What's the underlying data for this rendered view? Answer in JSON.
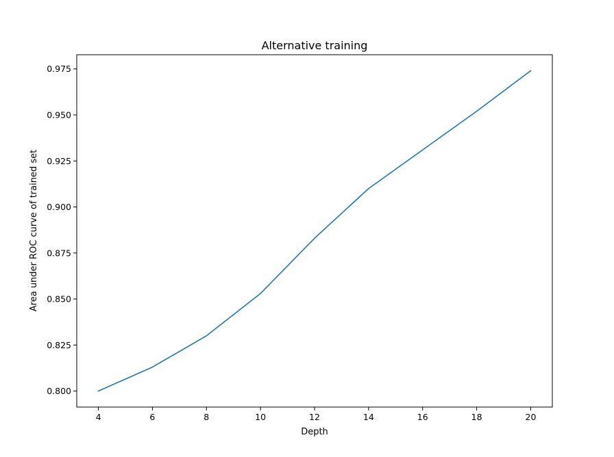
{
  "chart_data": {
    "type": "line",
    "title": "Alternative training",
    "xlabel": "Depth",
    "ylabel": "Area under ROC curve of trained set",
    "xlim": [
      3.2,
      20.8
    ],
    "ylim": [
      0.7913,
      0.9827
    ],
    "xticks": [
      4,
      6,
      8,
      10,
      12,
      14,
      16,
      18,
      20
    ],
    "xtick_labels": [
      "4",
      "6",
      "8",
      "10",
      "12",
      "14",
      "16",
      "18",
      "20"
    ],
    "yticks": [
      0.8,
      0.825,
      0.85,
      0.875,
      0.9,
      0.925,
      0.95,
      0.975
    ],
    "ytick_labels": [
      "0.800",
      "0.825",
      "0.850",
      "0.875",
      "0.900",
      "0.925",
      "0.950",
      "0.975"
    ],
    "grid": false,
    "series": [
      {
        "color": "#1f77b4",
        "x": [
          4,
          6,
          8,
          10,
          12,
          14,
          16,
          18,
          20
        ],
        "y": [
          0.8,
          0.813,
          0.83,
          0.853,
          0.883,
          0.91,
          0.931,
          0.952,
          0.974
        ]
      }
    ]
  }
}
